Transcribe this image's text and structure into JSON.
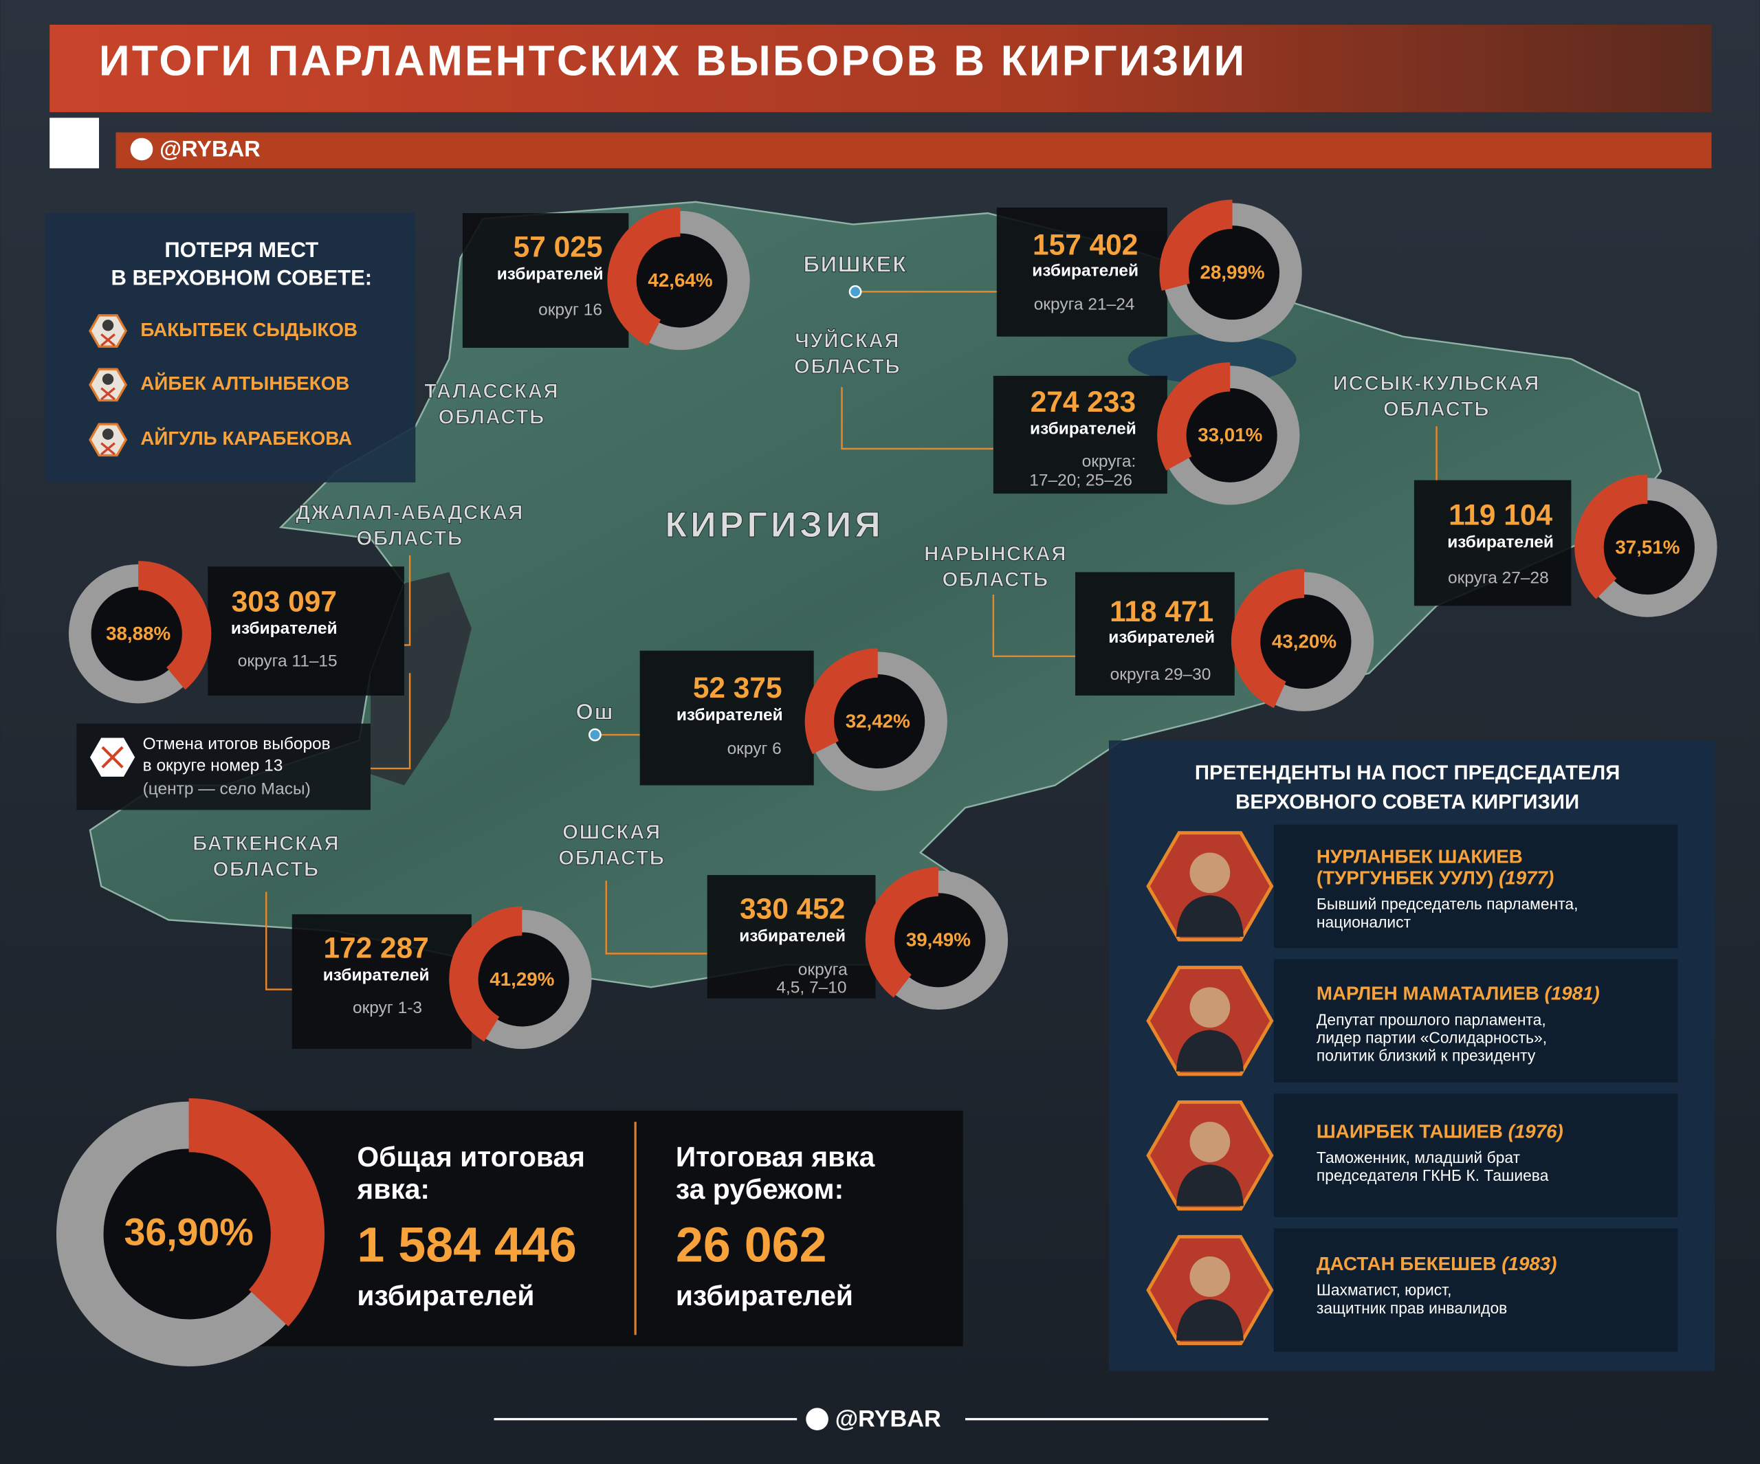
{
  "header": {
    "title": "ИТОГИ ПАРЛАМЕНТСКИХ ВЫБОРОВ В КИРГИЗИИ",
    "handle": "@RYBAR"
  },
  "lost_seats": {
    "title": [
      "ПОТЕРЯ МЕСТ",
      "В ВЕРХОВНОМ СОВЕТЕ:"
    ],
    "names": [
      "БАКЫТБЕК СЫДЫКОВ",
      "АЙБЕК АЛТЫНБЕКОВ",
      "АЙГУЛЬ КАРАБЕКОВА"
    ]
  },
  "map_labels": {
    "country": "КИРГИЗИЯ",
    "cities": [
      "БИШКЕК",
      "Ош"
    ],
    "regions": [
      [
        "ТАЛАССКАЯ",
        "ОБЛАСТЬ"
      ],
      [
        "ЧУЙСКАЯ",
        "ОБЛАСТЬ"
      ],
      [
        "ИССЫК-КУЛЬСКАЯ",
        "ОБЛАСТЬ"
      ],
      [
        "ДЖАЛАЛ-АБАДСКАЯ",
        "ОБЛАСТЬ"
      ],
      [
        "НАРЫНСКАЯ",
        "ОБЛАСТЬ"
      ],
      [
        "БАТКЕНСКАЯ",
        "ОБЛАСТЬ"
      ],
      [
        "ОШСКАЯ",
        "ОБЛАСТЬ"
      ]
    ]
  },
  "districts": [
    {
      "voters": "57 025",
      "unit": "избирателей",
      "okrug": [
        "округ 16"
      ],
      "turnout": {
        "value": 42.64,
        "label": "42,64%"
      }
    },
    {
      "voters": "157 402",
      "unit": "избирателей",
      "okrug": [
        "округа 21–24"
      ],
      "turnout": {
        "value": 28.99,
        "label": "28,99%"
      }
    },
    {
      "voters": "274 233",
      "unit": "избирателей",
      "okrug": [
        "округа:",
        "17–20; 25–26"
      ],
      "turnout": {
        "value": 33.01,
        "label": "33,01%"
      }
    },
    {
      "voters": "119 104",
      "unit": "избирателей",
      "okrug": [
        "округа 27–28"
      ],
      "turnout": {
        "value": 37.51,
        "label": "37,51%"
      }
    },
    {
      "voters": "118 471",
      "unit": "избирателей",
      "okrug": [
        "округа 29–30"
      ],
      "turnout": {
        "value": 43.2,
        "label": "43,20%"
      }
    },
    {
      "voters": "303 097",
      "unit": "избирателей",
      "okrug": [
        "округа 11–15"
      ],
      "turnout": {
        "value": 38.88,
        "label": "38,88%"
      }
    },
    {
      "voters": "52 375",
      "unit": "избирателей",
      "okrug": [
        "округ 6"
      ],
      "turnout": {
        "value": 32.42,
        "label": "32,42%"
      }
    },
    {
      "voters": "172 287",
      "unit": "избирателей",
      "okrug": [
        "округ 1-3"
      ],
      "turnout": {
        "value": 41.29,
        "label": "41,29%"
      }
    },
    {
      "voters": "330 452",
      "unit": "избирателей",
      "okrug": [
        "округа",
        "4,5, 7–10"
      ],
      "turnout": {
        "value": 39.49,
        "label": "39,49%"
      }
    }
  ],
  "cancellation": [
    "Отмена итогов выборов",
    "в округе номер 13",
    "(центр — село Масы)"
  ],
  "total": {
    "turnout": {
      "value": 36.9,
      "label": "36,90%"
    },
    "overall": {
      "caption": [
        "Общая итоговая",
        "явка:"
      ],
      "voters": "1 584 446",
      "unit": "избирателей"
    },
    "abroad": {
      "caption": [
        "Итоговая явка",
        "за рубежом:"
      ],
      "voters": "26 062",
      "unit": "избирателей"
    }
  },
  "candidates": {
    "title": [
      "ПРЕТЕНДЕНТЫ НА ПОСТ ПРЕДСЕДАТЕЛЯ",
      "ВЕРХОВНОГО СОВЕТА КИРГИЗИИ"
    ],
    "people": [
      {
        "name": [
          "НУРЛАНБЕК ШАКИЕВ",
          "(ТУРГУНБЕК УУЛУ)"
        ],
        "year": "(1977)",
        "description": [
          "Бывший председатель парламента,",
          "националист"
        ]
      },
      {
        "name": [
          "МАРЛЕН МАМАТАЛИЕВ"
        ],
        "year": "(1981)",
        "description": [
          "Депутат прошлого парламента,",
          "лидер партии «Солидарность»,",
          "политик близкий к президенту"
        ]
      },
      {
        "name": [
          "ШАИРБЕК ТАШИЕВ"
        ],
        "year": "(1976)",
        "description": [
          "Таможенник, младший брат",
          "председателя ГКНБ К. Ташиева"
        ]
      },
      {
        "name": [
          "ДАСТАН БЕКЕШЕВ"
        ],
        "year": "(1983)",
        "description": [
          "Шахматист, юрист,",
          "защитник прав инвалидов"
        ]
      }
    ]
  },
  "footer": {
    "handle": "@RYBAR"
  }
}
